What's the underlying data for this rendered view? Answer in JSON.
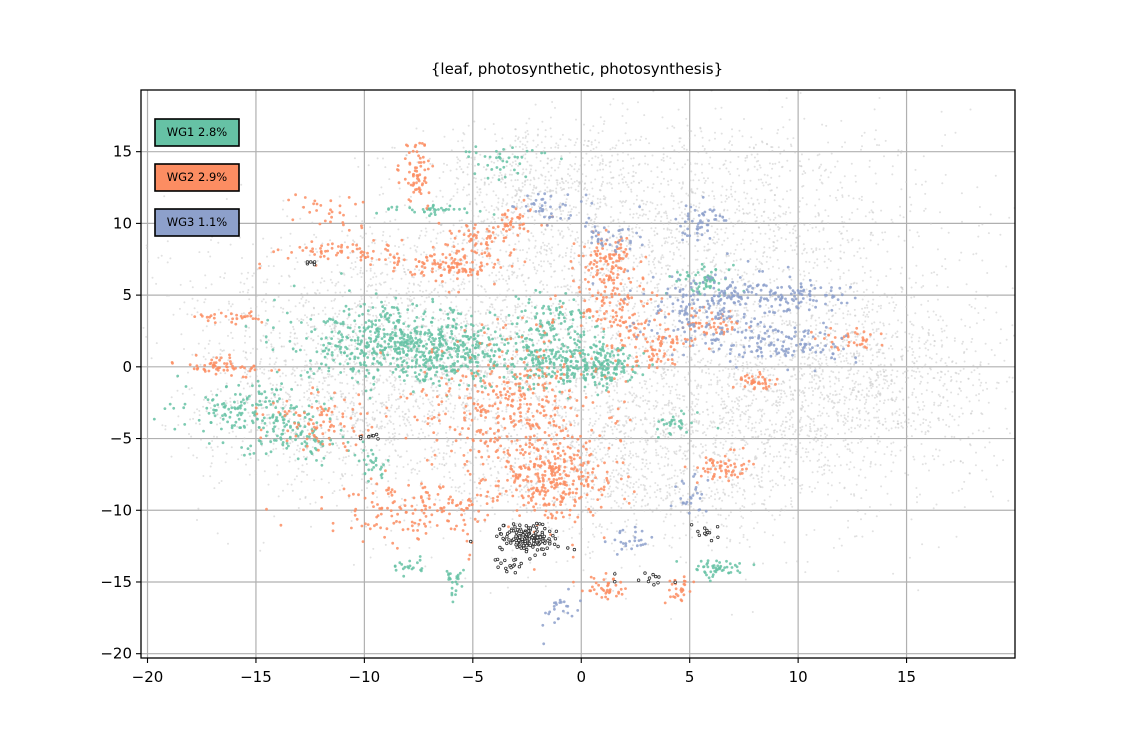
{
  "chart_data": {
    "type": "scatter",
    "title": "{leaf, photosynthetic, photosynthesis}",
    "xlabel": "",
    "ylabel": "",
    "xlim": [
      -20.3,
      20
    ],
    "ylim": [
      -20.3,
      19.3
    ],
    "x_ticks": [
      -20,
      -15,
      -10,
      -5,
      0,
      5,
      10,
      15
    ],
    "y_ticks": [
      -20,
      -15,
      -10,
      -5,
      0,
      5,
      10,
      15
    ],
    "grid": true,
    "legend_position": "top-left",
    "background_color": "#c8c8c8",
    "highlight_color": "#333333",
    "series": [
      {
        "name": "WG1 2.8%",
        "color": "#66c2a5",
        "clusters": [
          {
            "cx": -8.5,
            "cy": 1.5,
            "sx": 2.2,
            "sy": 1.3,
            "n": 520
          },
          {
            "cx": -5.8,
            "cy": 1.0,
            "sx": 1.2,
            "sy": 1.0,
            "n": 180
          },
          {
            "cx": -1.0,
            "cy": 0.5,
            "sx": 1.4,
            "sy": 1.0,
            "n": 260
          },
          {
            "cx": 1.0,
            "cy": 0.0,
            "sx": 0.8,
            "sy": 0.7,
            "n": 120
          },
          {
            "cx": -1.5,
            "cy": 3.0,
            "sx": 1.0,
            "sy": 1.0,
            "n": 90
          },
          {
            "cx": -15.0,
            "cy": -3.0,
            "sx": 1.5,
            "sy": 1.0,
            "n": 160
          },
          {
            "cx": -13.0,
            "cy": -5.0,
            "sx": 1.2,
            "sy": 0.8,
            "n": 90
          },
          {
            "cx": 5.7,
            "cy": 6.0,
            "sx": 0.7,
            "sy": 0.5,
            "n": 60
          },
          {
            "cx": 6.2,
            "cy": -14.0,
            "sx": 0.6,
            "sy": 0.3,
            "n": 50
          },
          {
            "cx": -3.5,
            "cy": 14.5,
            "sx": 1.0,
            "sy": 0.8,
            "n": 40
          },
          {
            "cx": -8.0,
            "cy": -14.0,
            "sx": 0.4,
            "sy": 0.3,
            "n": 20
          },
          {
            "cx": -5.8,
            "cy": -15.0,
            "sx": 0.2,
            "sy": 0.5,
            "n": 25
          },
          {
            "cx": -9.5,
            "cy": -7.0,
            "sx": 0.3,
            "sy": 0.5,
            "n": 25
          },
          {
            "cx": 4.5,
            "cy": -4.0,
            "sx": 0.6,
            "sy": 0.4,
            "n": 30
          },
          {
            "cx": -7.0,
            "cy": 11.0,
            "sx": 1.2,
            "sy": 0.2,
            "n": 40
          }
        ]
      },
      {
        "name": "WG2 2.9%",
        "color": "#fc8d62",
        "clusters": [
          {
            "cx": -3.0,
            "cy": -3.0,
            "sx": 2.0,
            "sy": 2.8,
            "n": 420
          },
          {
            "cx": -1.0,
            "cy": -8.0,
            "sx": 1.3,
            "sy": 1.3,
            "n": 260
          },
          {
            "cx": -6.0,
            "cy": 7.0,
            "sx": 1.2,
            "sy": 0.5,
            "n": 120
          },
          {
            "cx": 1.2,
            "cy": 7.5,
            "sx": 0.7,
            "sy": 1.0,
            "n": 110
          },
          {
            "cx": 1.5,
            "cy": 4.0,
            "sx": 1.0,
            "sy": 1.0,
            "n": 110
          },
          {
            "cx": -7.5,
            "cy": 13.5,
            "sx": 0.4,
            "sy": 1.2,
            "n": 70
          },
          {
            "cx": -7.5,
            "cy": -10.0,
            "sx": 2.0,
            "sy": 1.0,
            "n": 160
          },
          {
            "cx": -12.0,
            "cy": -4.0,
            "sx": 1.3,
            "sy": 1.0,
            "n": 90
          },
          {
            "cx": -16.5,
            "cy": 0.0,
            "sx": 1.0,
            "sy": 0.3,
            "n": 60
          },
          {
            "cx": -11.0,
            "cy": 8.0,
            "sx": 1.5,
            "sy": 0.4,
            "n": 70
          },
          {
            "cx": -5.0,
            "cy": 9.0,
            "sx": 0.8,
            "sy": 0.6,
            "n": 50
          },
          {
            "cx": -3.0,
            "cy": 10.0,
            "sx": 0.6,
            "sy": 0.6,
            "n": 40
          },
          {
            "cx": 6.5,
            "cy": -7.0,
            "sx": 0.6,
            "sy": 0.5,
            "n": 60
          },
          {
            "cx": 8.0,
            "cy": -1.0,
            "sx": 0.5,
            "sy": 0.3,
            "n": 40
          },
          {
            "cx": 3.5,
            "cy": 1.5,
            "sx": 1.0,
            "sy": 0.8,
            "n": 80
          },
          {
            "cx": 1.2,
            "cy": -15.5,
            "sx": 0.6,
            "sy": 0.4,
            "n": 40
          },
          {
            "cx": 4.5,
            "cy": -15.5,
            "sx": 0.3,
            "sy": 0.5,
            "n": 30
          },
          {
            "cx": 12.5,
            "cy": 2.0,
            "sx": 0.8,
            "sy": 0.4,
            "n": 35
          },
          {
            "cx": -16.0,
            "cy": 3.5,
            "sx": 0.8,
            "sy": 0.2,
            "n": 30
          },
          {
            "cx": -11.5,
            "cy": 11.0,
            "sx": 0.8,
            "sy": 0.6,
            "n": 30
          },
          {
            "cx": 6.0,
            "cy": 3.0,
            "sx": 0.8,
            "sy": 0.6,
            "n": 45
          }
        ]
      },
      {
        "name": "WG3 1.1%",
        "color": "#8da0cb",
        "clusters": [
          {
            "cx": 6.0,
            "cy": 4.0,
            "sx": 1.5,
            "sy": 1.3,
            "n": 200
          },
          {
            "cx": 9.5,
            "cy": 1.5,
            "sx": 1.5,
            "sy": 0.7,
            "n": 110
          },
          {
            "cx": 8.5,
            "cy": 5.0,
            "sx": 1.5,
            "sy": 0.6,
            "n": 90
          },
          {
            "cx": 5.5,
            "cy": 10.0,
            "sx": 0.6,
            "sy": 0.8,
            "n": 50
          },
          {
            "cx": -1.5,
            "cy": 11.0,
            "sx": 0.8,
            "sy": 0.6,
            "n": 40
          },
          {
            "cx": 1.0,
            "cy": 9.0,
            "sx": 0.8,
            "sy": 0.7,
            "n": 40
          },
          {
            "cx": -1.0,
            "cy": -17.0,
            "sx": 0.4,
            "sy": 0.8,
            "n": 25
          },
          {
            "cx": 5.0,
            "cy": -9.5,
            "sx": 0.5,
            "sy": 0.8,
            "n": 25
          },
          {
            "cx": 11.0,
            "cy": 5.0,
            "sx": 1.0,
            "sy": 0.5,
            "n": 30
          },
          {
            "cx": 2.0,
            "cy": -12.0,
            "sx": 0.6,
            "sy": 0.5,
            "n": 25
          }
        ]
      }
    ],
    "highlight_clusters": [
      {
        "cx": -2.5,
        "cy": -12.0,
        "sx": 0.7,
        "sy": 0.5,
        "n": 160
      },
      {
        "cx": -3.3,
        "cy": -13.8,
        "sx": 0.3,
        "sy": 0.4,
        "n": 15
      },
      {
        "cx": -9.8,
        "cy": -4.9,
        "sx": 0.3,
        "sy": 0.1,
        "n": 8
      },
      {
        "cx": 5.8,
        "cy": -11.5,
        "sx": 0.4,
        "sy": 0.3,
        "n": 12
      },
      {
        "cx": 3.0,
        "cy": -14.8,
        "sx": 0.6,
        "sy": 0.3,
        "n": 12
      },
      {
        "cx": -12.5,
        "cy": 7.2,
        "sx": 0.3,
        "sy": 0.1,
        "n": 6
      }
    ],
    "background_clusters": [
      {
        "cx": 5.0,
        "cy": 10.0,
        "sx": 6.0,
        "sy": 4.0,
        "n": 1500
      },
      {
        "cx": 10.0,
        "cy": -2.0,
        "sx": 5.0,
        "sy": 4.0,
        "n": 1300
      },
      {
        "cx": -2.0,
        "cy": 0.0,
        "sx": 6.0,
        "sy": 5.0,
        "n": 1700
      },
      {
        "cx": -9.0,
        "cy": 3.0,
        "sx": 5.0,
        "sy": 4.0,
        "n": 1000
      },
      {
        "cx": 2.0,
        "cy": -7.0,
        "sx": 5.0,
        "sy": 3.0,
        "n": 1000
      },
      {
        "cx": -12.0,
        "cy": -3.0,
        "sx": 3.0,
        "sy": 3.0,
        "n": 600
      },
      {
        "cx": 14.0,
        "cy": 0.0,
        "sx": 3.0,
        "sy": 3.0,
        "n": 500
      },
      {
        "cx": -2.0,
        "cy": 13.0,
        "sx": 2.5,
        "sy": 2.0,
        "n": 400
      }
    ]
  }
}
